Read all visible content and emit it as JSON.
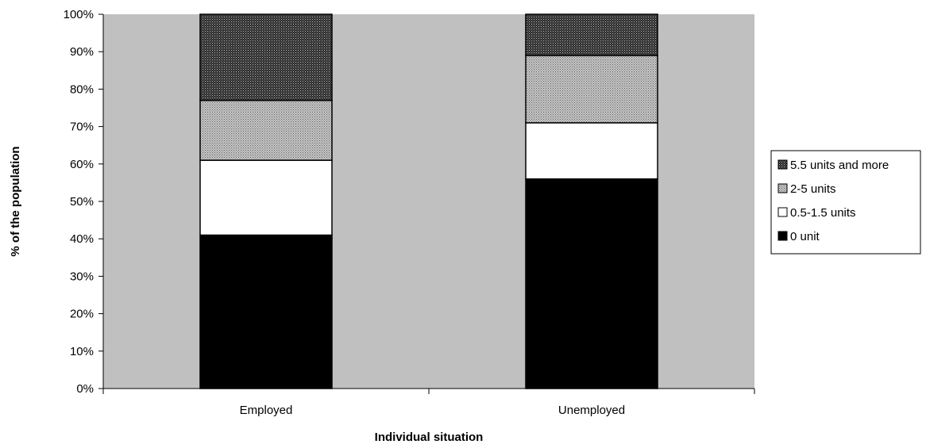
{
  "chart_data": {
    "type": "bar",
    "stacked": true,
    "categories": [
      "Employed",
      "Unemployed"
    ],
    "series": [
      {
        "name": "0 unit",
        "values": [
          41,
          56
        ],
        "color": "#000000",
        "pattern": "solid"
      },
      {
        "name": "0.5-1.5 units",
        "values": [
          20,
          15
        ],
        "color": "#ffffff",
        "pattern": "solid"
      },
      {
        "name": "2-5 units",
        "values": [
          16,
          18
        ],
        "color": "#a0a0a0",
        "pattern": "light-dots"
      },
      {
        "name": "5.5 units and more",
        "values": [
          23,
          11
        ],
        "color": "#555555",
        "pattern": "dark-dots"
      }
    ],
    "xlabel": "Individual situation",
    "ylabel": "% of the population",
    "ylim": [
      0,
      100
    ],
    "yticks": [
      "0%",
      "10%",
      "20%",
      "30%",
      "40%",
      "50%",
      "60%",
      "70%",
      "80%",
      "90%",
      "100%"
    ],
    "grid": false,
    "legend_position": "right",
    "legend_order": [
      "5.5 units and more",
      "2-5 units",
      "0.5-1.5 units",
      "0 unit"
    ],
    "plot_background": "#c0c0c0"
  }
}
